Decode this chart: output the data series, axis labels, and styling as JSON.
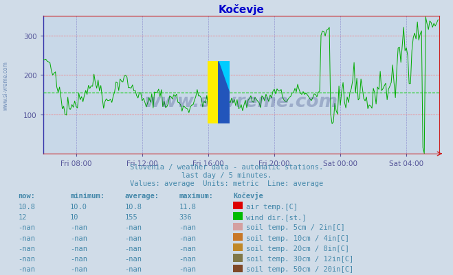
{
  "title": "Kočevje",
  "title_color": "#0000cc",
  "bg_color": "#d0dce8",
  "plot_bg_color": "#c8d8e8",
  "grid_color_h": "#ff6666",
  "grid_color_v": "#8888cc",
  "avg_line_color": "#00cc00",
  "avg_line_value": 155,
  "line_color": "#00aa00",
  "ylim": [
    0,
    350
  ],
  "yticks": [
    100,
    200,
    300
  ],
  "xtick_labels": [
    "Fri 08:00",
    "Fri 12:00",
    "Fri 16:00",
    "Fri 20:00",
    "Sat 00:00",
    "Sat 04:00"
  ],
  "subtitle_lines": [
    "Slovenia / weather data - automatic stations.",
    "last day / 5 minutes.",
    "Values: average  Units: metric  Line: average"
  ],
  "subtitle_color": "#4488aa",
  "table_header": [
    "now:",
    "minimum:",
    "average:",
    "maximum:",
    "Kočevje"
  ],
  "table_color": "#4488aa",
  "rows": [
    {
      "now": "10.8",
      "min": "10.0",
      "avg": "10.8",
      "max": "11.8",
      "color": "#dd0000",
      "label": "air temp.[C]"
    },
    {
      "now": "12",
      "min": "10",
      "avg": "155",
      "max": "336",
      "color": "#00bb00",
      "label": "wind dir.[st.]"
    },
    {
      "now": "-nan",
      "min": "-nan",
      "avg": "-nan",
      "max": "-nan",
      "color": "#d4a0a0",
      "label": "soil temp. 5cm / 2in[C]"
    },
    {
      "now": "-nan",
      "min": "-nan",
      "avg": "-nan",
      "max": "-nan",
      "color": "#c87828",
      "label": "soil temp. 10cm / 4in[C]"
    },
    {
      "now": "-nan",
      "min": "-nan",
      "avg": "-nan",
      "max": "-nan",
      "color": "#c08828",
      "label": "soil temp. 20cm / 8in[C]"
    },
    {
      "now": "-nan",
      "min": "-nan",
      "avg": "-nan",
      "max": "-nan",
      "color": "#807848",
      "label": "soil temp. 30cm / 12in[C]"
    },
    {
      "now": "-nan",
      "min": "-nan",
      "avg": "-nan",
      "max": "-nan",
      "color": "#804828",
      "label": "soil temp. 50cm / 20in[C]"
    }
  ],
  "watermark": "www.si-vreme.com",
  "watermark_color": "#1a2a6e",
  "watermark_alpha": 0.25,
  "n_points": 288,
  "tick_positions": [
    24,
    72,
    120,
    168,
    216,
    264
  ]
}
